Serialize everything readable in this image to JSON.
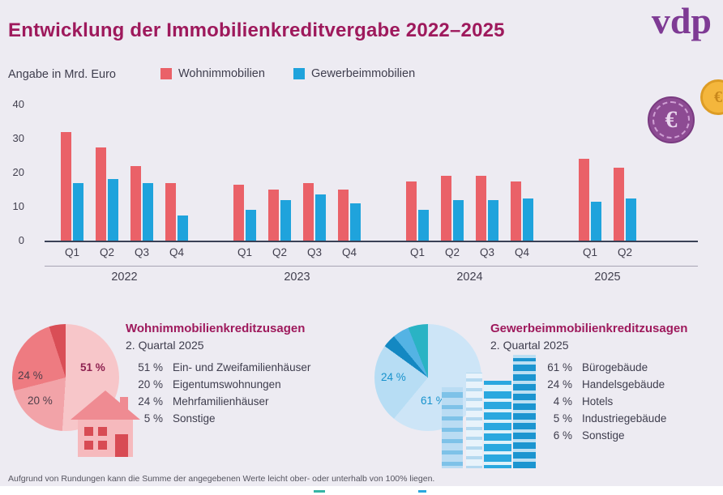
{
  "header": {
    "title": "Entwicklung der Immobilienkreditvergabe 2022–2025",
    "logo_text": "vdp"
  },
  "legend": {
    "unit_label": "Angabe in Mrd. Euro",
    "items": [
      {
        "label": "Wohnimmobilien",
        "color": "#ea6168"
      },
      {
        "label": "Gewerbeimmobilien",
        "color": "#1fa3dc"
      }
    ]
  },
  "decorations": {
    "euro_symbol": "€"
  },
  "chart_data": [
    {
      "type": "bar",
      "title": "Entwicklung der Immobilienkreditvergabe 2022–2025",
      "ylabel": "Mrd. Euro",
      "ylim": [
        0,
        40
      ],
      "yticks": [
        0,
        10,
        20,
        30,
        40
      ],
      "legend": [
        "Wohnimmobilien",
        "Gewerbeimmobilien"
      ],
      "series_colors": {
        "Wohnimmobilien": "#ea6168",
        "Gewerbeimmobilien": "#1fa3dc"
      },
      "grid": false,
      "legend_position": "top",
      "groups": [
        {
          "year": "2022",
          "quarters": [
            "Q1",
            "Q2",
            "Q3",
            "Q4"
          ],
          "wohnimmobilien": [
            32,
            27.5,
            22,
            17
          ],
          "gewerbeimmobilien": [
            17,
            18,
            17,
            7.5
          ]
        },
        {
          "year": "2023",
          "quarters": [
            "Q1",
            "Q2",
            "Q3",
            "Q4"
          ],
          "wohnimmobilien": [
            16.5,
            15,
            17,
            15
          ],
          "gewerbeimmobilien": [
            9,
            12,
            13.5,
            11
          ]
        },
        {
          "year": "2024",
          "quarters": [
            "Q1",
            "Q2",
            "Q3",
            "Q4"
          ],
          "wohnimmobilien": [
            17.5,
            19,
            19,
            17.5
          ],
          "gewerbeimmobilien": [
            9,
            12,
            12,
            12.5
          ]
        },
        {
          "year": "2025",
          "quarters": [
            "Q1",
            "Q2"
          ],
          "wohnimmobilien": [
            24,
            21.5
          ],
          "gewerbeimmobilien": [
            11.5,
            12.5
          ]
        }
      ]
    },
    {
      "type": "pie",
      "title": "Wohnimmobilienkreditzusagen",
      "subtitle": "2. Quartal 2025",
      "slices": [
        {
          "label": "Ein- und Zweifamilienhäuser",
          "pct": "51 %",
          "value": 51,
          "color": "#f7c6c9"
        },
        {
          "label": "Eigentumswohnungen",
          "pct": "20 %",
          "value": 20,
          "color": "#f2a3a8"
        },
        {
          "label": "Mehrfamilienhäuser",
          "pct": "24 %",
          "value": 24,
          "color": "#ee7b81"
        },
        {
          "label": "Sonstige",
          "pct": "5 %",
          "value": 5,
          "color": "#d94e56"
        }
      ]
    },
    {
      "type": "pie",
      "title": "Gewerbeimmobilienkreditzusagen",
      "subtitle": "2. Quartal 2025",
      "slices": [
        {
          "label": "Bürogebäude",
          "pct": "61 %",
          "value": 61,
          "color": "#cde5f7"
        },
        {
          "label": "Handelsgebäude",
          "pct": "24 %",
          "value": 24,
          "color": "#b7ddf4"
        },
        {
          "label": "Hotels",
          "pct": "4 %",
          "value": 4,
          "color": "#1488c2"
        },
        {
          "label": "Industriegebäude",
          "pct": "5 %",
          "value": 5,
          "color": "#54b3e4"
        },
        {
          "label": "Sonstige",
          "pct": "6 %",
          "value": 6,
          "color": "#2ab3c4"
        }
      ]
    }
  ],
  "footnote": "Aufgrund von Rundungen kann die Summe der angegebenen Werte leicht ober- oder unterhalb von 100% liegen."
}
